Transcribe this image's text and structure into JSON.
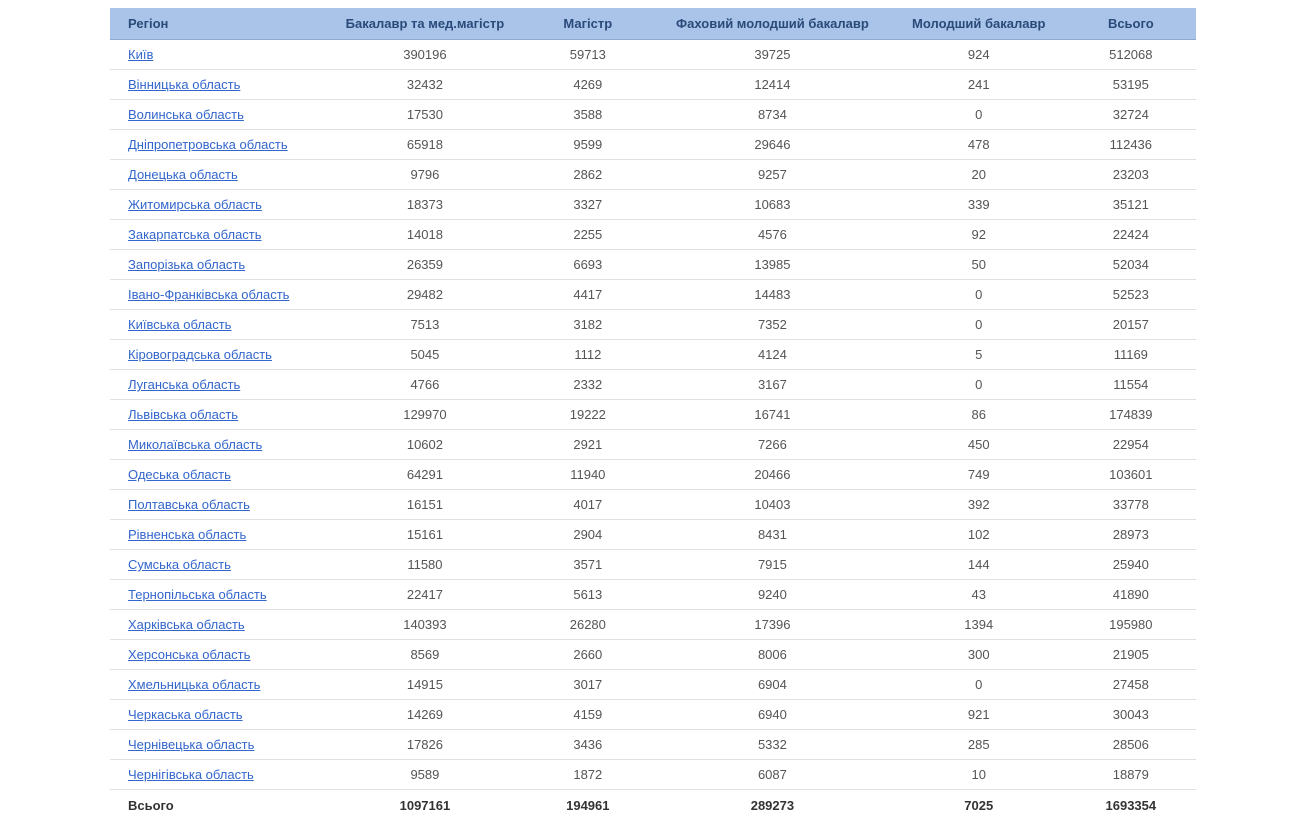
{
  "table": {
    "columns": [
      "Регіон",
      "Бакалавр та мед.магістр",
      "Магістр",
      "Фаховий молодший бакалавр",
      "Молодший бакалавр",
      "Всього"
    ],
    "rows": [
      {
        "region": "Київ",
        "bachelor": "390196",
        "master": "59713",
        "fmb": "39725",
        "junior": "924",
        "total": "512068"
      },
      {
        "region": "Вінницька область",
        "bachelor": "32432",
        "master": "4269",
        "fmb": "12414",
        "junior": "241",
        "total": "53195"
      },
      {
        "region": "Волинська область",
        "bachelor": "17530",
        "master": "3588",
        "fmb": "8734",
        "junior": "0",
        "total": "32724"
      },
      {
        "region": "Дніпропетровська область",
        "bachelor": "65918",
        "master": "9599",
        "fmb": "29646",
        "junior": "478",
        "total": "112436"
      },
      {
        "region": "Донецька область",
        "bachelor": "9796",
        "master": "2862",
        "fmb": "9257",
        "junior": "20",
        "total": "23203"
      },
      {
        "region": "Житомирська область",
        "bachelor": "18373",
        "master": "3327",
        "fmb": "10683",
        "junior": "339",
        "total": "35121"
      },
      {
        "region": "Закарпатська область",
        "bachelor": "14018",
        "master": "2255",
        "fmb": "4576",
        "junior": "92",
        "total": "22424"
      },
      {
        "region": "Запорізька область",
        "bachelor": "26359",
        "master": "6693",
        "fmb": "13985",
        "junior": "50",
        "total": "52034"
      },
      {
        "region": "Івано-Франківська область",
        "bachelor": "29482",
        "master": "4417",
        "fmb": "14483",
        "junior": "0",
        "total": "52523"
      },
      {
        "region": "Київська область",
        "bachelor": "7513",
        "master": "3182",
        "fmb": "7352",
        "junior": "0",
        "total": "20157"
      },
      {
        "region": "Кіровоградська область",
        "bachelor": "5045",
        "master": "1112",
        "fmb": "4124",
        "junior": "5",
        "total": "11169"
      },
      {
        "region": "Луганська область",
        "bachelor": "4766",
        "master": "2332",
        "fmb": "3167",
        "junior": "0",
        "total": "11554"
      },
      {
        "region": "Львівська область",
        "bachelor": "129970",
        "master": "19222",
        "fmb": "16741",
        "junior": "86",
        "total": "174839"
      },
      {
        "region": "Миколаївська область",
        "bachelor": "10602",
        "master": "2921",
        "fmb": "7266",
        "junior": "450",
        "total": "22954"
      },
      {
        "region": "Одеська область",
        "bachelor": "64291",
        "master": "11940",
        "fmb": "20466",
        "junior": "749",
        "total": "103601"
      },
      {
        "region": "Полтавська область",
        "bachelor": "16151",
        "master": "4017",
        "fmb": "10403",
        "junior": "392",
        "total": "33778"
      },
      {
        "region": "Рівненська область",
        "bachelor": "15161",
        "master": "2904",
        "fmb": "8431",
        "junior": "102",
        "total": "28973"
      },
      {
        "region": "Сумська область",
        "bachelor": "11580",
        "master": "3571",
        "fmb": "7915",
        "junior": "144",
        "total": "25940"
      },
      {
        "region": "Тернопільська область",
        "bachelor": "22417",
        "master": "5613",
        "fmb": "9240",
        "junior": "43",
        "total": "41890"
      },
      {
        "region": "Харківська область",
        "bachelor": "140393",
        "master": "26280",
        "fmb": "17396",
        "junior": "1394",
        "total": "195980"
      },
      {
        "region": "Херсонська область",
        "bachelor": "8569",
        "master": "2660",
        "fmb": "8006",
        "junior": "300",
        "total": "21905"
      },
      {
        "region": "Хмельницька область",
        "bachelor": "14915",
        "master": "3017",
        "fmb": "6904",
        "junior": "0",
        "total": "27458"
      },
      {
        "region": "Черкаська область",
        "bachelor": "14269",
        "master": "4159",
        "fmb": "6940",
        "junior": "921",
        "total": "30043"
      },
      {
        "region": "Чернівецька область",
        "bachelor": "17826",
        "master": "3436",
        "fmb": "5332",
        "junior": "285",
        "total": "28506"
      },
      {
        "region": "Чернігівська область",
        "bachelor": "9589",
        "master": "1872",
        "fmb": "6087",
        "junior": "10",
        "total": "18879"
      }
    ],
    "footer": {
      "label": "Всього",
      "bachelor": "1097161",
      "master": "194961",
      "fmb": "289273",
      "junior": "7025",
      "total": "1693354"
    },
    "styling": {
      "header_bg": "#a9c4e8",
      "header_text": "#2a4a7a",
      "link_color": "#3366cc",
      "row_border": "#e0e0e0",
      "body_text": "#555555",
      "footer_text": "#333333",
      "font_size": 13
    }
  }
}
